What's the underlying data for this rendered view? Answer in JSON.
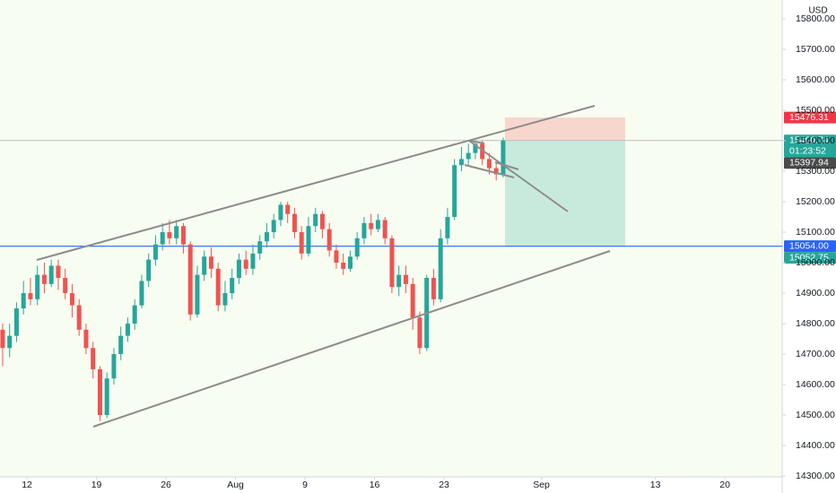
{
  "chart_data": {
    "type": "candlestick",
    "currency": "USD",
    "x": [
      -1.75,
      -1.25,
      -0.75,
      -0.25,
      0.25,
      0.75,
      1.25,
      1.75,
      2.25,
      2.75,
      3.25,
      3.75,
      4.25,
      4.75,
      5.25,
      5.75,
      6.25,
      6.75,
      7.25,
      7.75,
      8.25,
      8.75,
      9.25,
      9.75,
      10.25,
      10.75,
      11.25,
      11.75,
      12.25,
      12.75,
      13.25,
      13.75,
      14.25,
      14.75,
      15.25,
      15.75,
      16.25,
      16.75,
      17.25,
      17.75,
      18.25,
      18.75,
      19.25,
      19.75,
      20.25,
      20.75,
      21.25,
      21.75,
      22.25,
      22.75,
      23.25,
      23.75,
      24.25,
      24.75,
      25.25,
      25.75,
      26.25,
      26.75,
      27.25,
      27.75,
      28.25,
      28.75,
      29.25,
      29.75,
      30.25,
      30.75,
      31.25,
      31.75,
      32.25,
      32.75,
      33.25,
      33.75,
      34.25
    ],
    "open": [
      14780,
      14720,
      14760,
      14850,
      14900,
      14880,
      14960,
      14930,
      14990,
      14950,
      14900,
      14860,
      14780,
      14720,
      14650,
      14500,
      14620,
      14700,
      14760,
      14800,
      14860,
      14940,
      15010,
      15060,
      15100,
      15080,
      15120,
      15060,
      14830,
      14960,
      15020,
      14980,
      14860,
      14900,
      14950,
      15010,
      14980,
      15030,
      15070,
      15100,
      15140,
      15190,
      15160,
      15100,
      15030,
      15120,
      15160,
      15110,
      15040,
      15000,
      14980,
      15020,
      15080,
      15130,
      15110,
      15140,
      15080,
      14920,
      14960,
      14930,
      14820,
      14720,
      14950,
      14880,
      15080,
      15150,
      15320,
      15340,
      15360,
      15390,
      15340,
      15310,
      15290
    ],
    "high": [
      14800,
      14800,
      14870,
      14940,
      14950,
      14990,
      15000,
      15010,
      15010,
      14980,
      14930,
      14880,
      14800,
      14740,
      14660,
      14640,
      14720,
      14790,
      14820,
      14880,
      14960,
      15030,
      15090,
      15130,
      15140,
      15140,
      15130,
      15070,
      14990,
      15040,
      15050,
      15000,
      14940,
      14980,
      15030,
      15040,
      15060,
      15090,
      15130,
      15160,
      15200,
      15200,
      15180,
      15120,
      15150,
      15180,
      15170,
      15130,
      15060,
      15030,
      15040,
      15100,
      15150,
      15160,
      15160,
      15150,
      15090,
      14990,
      14990,
      14950,
      14840,
      14960,
      14980,
      15110,
      15180,
      15340,
      15380,
      15390,
      15400,
      15400,
      15360,
      15330,
      15410
    ],
    "low": [
      14660,
      14690,
      14740,
      14830,
      14860,
      14860,
      14900,
      14920,
      14910,
      14880,
      14820,
      14760,
      14700,
      14620,
      14480,
      14490,
      14600,
      14680,
      14740,
      14780,
      14850,
      14920,
      14990,
      15040,
      15060,
      15060,
      15030,
      14810,
      14820,
      14940,
      14950,
      14840,
      14840,
      14880,
      14930,
      14960,
      14960,
      15010,
      15050,
      15080,
      15120,
      15130,
      15080,
      15010,
      15020,
      15100,
      15080,
      15020,
      14980,
      14960,
      14970,
      15010,
      15060,
      15090,
      15100,
      15060,
      14900,
      14890,
      14900,
      14780,
      14700,
      14710,
      14860,
      14870,
      15060,
      15140,
      15300,
      15320,
      15340,
      15320,
      15290,
      15270,
      15280
    ],
    "close": [
      14720,
      14760,
      14850,
      14900,
      14880,
      14960,
      14930,
      14990,
      14950,
      14900,
      14860,
      14780,
      14720,
      14650,
      14500,
      14620,
      14700,
      14760,
      14800,
      14860,
      14940,
      15010,
      15060,
      15100,
      15080,
      15120,
      15060,
      14830,
      14960,
      15020,
      14980,
      14860,
      14900,
      14950,
      15010,
      14980,
      15030,
      15070,
      15100,
      15140,
      15190,
      15160,
      15100,
      15030,
      15120,
      15160,
      15110,
      15040,
      15000,
      14980,
      15020,
      15080,
      15130,
      15110,
      15140,
      15080,
      14920,
      14960,
      14930,
      14820,
      14720,
      14950,
      14880,
      15080,
      15150,
      15320,
      15340,
      15360,
      15390,
      15340,
      15310,
      15290,
      15400.74
    ],
    "up_color": "#26a69a",
    "down_color": "#ef5350",
    "xlim": [
      -1.94,
      54.32
    ],
    "xticks": [
      {
        "value": 0,
        "label": "12"
      },
      {
        "value": 5,
        "label": "19"
      },
      {
        "value": 10,
        "label": "26"
      },
      {
        "value": 15,
        "label": "Aug"
      },
      {
        "value": 20,
        "label": "9"
      },
      {
        "value": 25,
        "label": "16"
      },
      {
        "value": 30,
        "label": "23"
      },
      {
        "value": 37,
        "label": "Sep"
      },
      {
        "value": 45.2,
        "label": "13"
      },
      {
        "value": 50.2,
        "label": "20"
      }
    ],
    "ylim": [
      14300,
      15862
    ],
    "yticks": [
      {
        "value": 14300,
        "label": "14300.00"
      },
      {
        "value": 14400,
        "label": "14400.00"
      },
      {
        "value": 14500,
        "label": "14500.00"
      },
      {
        "value": 14600,
        "label": "14600.00"
      },
      {
        "value": 14700,
        "label": "14700.00"
      },
      {
        "value": 14800,
        "label": "14800.00"
      },
      {
        "value": 14900,
        "label": "14900.00"
      },
      {
        "value": 15000,
        "label": "15000.00"
      },
      {
        "value": 15100,
        "label": "15100.00"
      },
      {
        "value": 15200,
        "label": "15200.00"
      },
      {
        "value": 15300,
        "label": "15300.00"
      },
      {
        "value": 15400,
        "label": "15400.00"
      },
      {
        "value": 15500,
        "label": "15500.00"
      },
      {
        "value": 15600,
        "label": "15600.00"
      },
      {
        "value": 15700,
        "label": "15700.00"
      },
      {
        "value": 15800,
        "label": "15800.00"
      }
    ],
    "price_labels": [
      {
        "value": 15476.31,
        "color": "#f23645"
      },
      {
        "value": 15400.74,
        "countdown": "01:23:52",
        "color": "#26a69a"
      },
      {
        "value": 15397.94,
        "color": "#4a4a4a"
      },
      {
        "value": 15054,
        "label": "15054.00",
        "color": "#2962ff"
      },
      {
        "value": 15052.75,
        "color": "#26a69a"
      }
    ]
  }
}
